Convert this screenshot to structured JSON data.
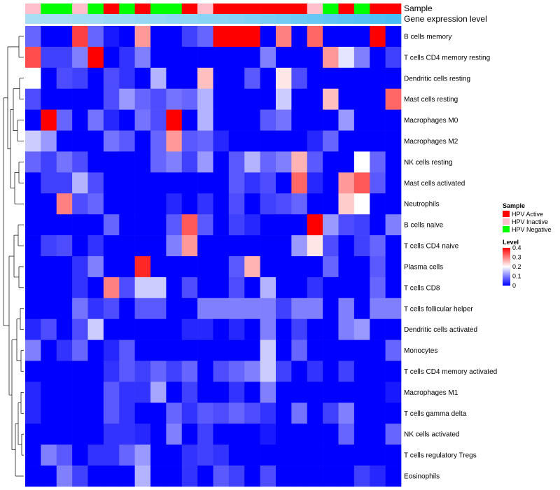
{
  "chart_data": {
    "type": "heatmap",
    "title": "",
    "annotation_labels": {
      "sample": "Sample",
      "gene": "Gene expression level"
    },
    "samples": [
      "HPV Inactive",
      "HPV Negative",
      "HPV Negative",
      "HPV Inactive",
      "HPV Negative",
      "HPV Active",
      "HPV Negative",
      "HPV Active",
      "HPV Negative",
      "HPV Negative",
      "HPV Active",
      "HPV Inactive",
      "HPV Active",
      "HPV Active",
      "HPV Active",
      "HPV Active",
      "HPV Active",
      "HPV Active",
      "HPV Inactive",
      "HPV Negative",
      "HPV Active",
      "HPV Negative",
      "HPV Active",
      "HPV Active"
    ],
    "gene_levels": [
      0.1,
      0.1,
      0.1,
      0.15,
      0.15,
      0.2,
      0.2,
      0.25,
      0.25,
      0.3,
      0.3,
      0.35,
      0.35,
      0.4,
      0.45,
      0.5,
      0.55,
      0.6,
      0.65,
      0.7,
      0.75,
      0.8,
      0.85,
      0.9
    ],
    "rows": [
      "B cells memory",
      "T cells CD4 memory resting",
      "Dendritic cells resting",
      "Mast cells resting",
      "Macrophages M0",
      "Macrophages M2",
      "NK cells resting",
      "Mast cells activated",
      "Neutrophils",
      "B cells naive",
      "T cells CD4 naive",
      "Plasma cells",
      "T cells CD8",
      "T cells follicular helper",
      "Dendritic cells activated",
      "Monocytes",
      "T cells CD4 memory activated",
      "Macrophages M1",
      "T cells gamma delta",
      "NK cells activated",
      "T cells regulatory  Tregs",
      "Eosinophils"
    ],
    "values": [
      [
        0.08,
        0,
        0,
        0.35,
        0.08,
        0.02,
        0,
        0.28,
        0,
        0,
        0.05,
        0.08,
        0.4,
        0.4,
        0.4,
        0,
        0.3,
        0,
        0.32,
        0,
        0,
        0,
        0.4,
        0
      ],
      [
        0.34,
        0.05,
        0.05,
        0.1,
        0.4,
        0,
        0.04,
        0.1,
        0,
        0,
        0,
        0,
        0,
        0,
        0,
        0.1,
        0,
        0,
        0,
        0.28,
        0.18,
        0.1,
        0,
        0.05
      ],
      [
        0.2,
        0,
        0.06,
        0.05,
        0,
        0.06,
        0.04,
        0,
        0.14,
        0,
        0,
        0.25,
        0,
        0,
        0.07,
        0,
        0.22,
        0.06,
        0,
        0,
        0,
        0,
        0,
        0
      ],
      [
        0.06,
        0,
        0,
        0,
        0,
        0.06,
        0.12,
        0.08,
        0.06,
        0.09,
        0.08,
        0.14,
        0,
        0,
        0,
        0,
        0.16,
        0,
        0,
        0.25,
        0,
        0,
        0,
        0.32
      ],
      [
        0,
        0.4,
        0.08,
        0,
        0.09,
        0.03,
        0,
        0.09,
        0.06,
        0.4,
        0,
        0.14,
        0,
        0,
        0,
        0.07,
        0.09,
        0,
        0,
        0,
        0.12,
        0,
        0,
        0
      ],
      [
        0.16,
        0.12,
        0,
        0,
        0,
        0.09,
        0.07,
        0,
        0.08,
        0.28,
        0.07,
        0.08,
        0.03,
        0,
        0,
        0,
        0,
        0,
        0.03,
        0.08,
        0,
        0,
        0,
        0
      ],
      [
        0.08,
        0.05,
        0.09,
        0.06,
        0,
        0,
        0,
        0,
        0.08,
        0.1,
        0.05,
        0.12,
        0,
        0.07,
        0.14,
        0.08,
        0.1,
        0.26,
        0.07,
        0,
        0,
        0.2,
        0.08,
        0
      ],
      [
        0,
        0.05,
        0.05,
        0.14,
        0.06,
        0,
        0,
        0,
        0,
        0,
        0,
        0,
        0,
        0.07,
        0.04,
        0.06,
        0,
        0.32,
        0.03,
        0,
        0.28,
        0.33,
        0.07,
        0
      ],
      [
        0,
        0,
        0.3,
        0.06,
        0.08,
        0,
        0,
        0,
        0,
        0.03,
        0,
        0.04,
        0,
        0.06,
        0,
        0.05,
        0.06,
        0.08,
        0,
        0,
        0.24,
        0.2,
        0,
        0
      ],
      [
        0,
        0,
        0,
        0,
        0,
        0.08,
        0,
        0,
        0,
        0.07,
        0.33,
        0.07,
        0,
        0.05,
        0.03,
        0,
        0,
        0,
        0.4,
        0.12,
        0.06,
        0.05,
        0,
        0.1
      ],
      [
        0,
        0.05,
        0.06,
        0,
        0.04,
        0,
        0,
        0,
        0,
        0.1,
        0.28,
        0,
        0,
        0,
        0,
        0,
        0,
        0.12,
        0.22,
        0.06,
        0,
        0.05,
        0.08,
        0
      ],
      [
        0,
        0,
        0,
        0.04,
        0.1,
        0,
        0,
        0.37,
        0,
        0,
        0,
        0,
        0,
        0.07,
        0.26,
        0,
        0,
        0,
        0,
        0.08,
        0,
        0,
        0.07,
        0
      ],
      [
        0,
        0,
        0,
        0.04,
        0,
        0.3,
        0.06,
        0.16,
        0.16,
        0,
        0.06,
        0,
        0,
        0.06,
        0,
        0.14,
        0,
        0,
        0.04,
        0,
        0,
        0,
        0.08,
        0
      ],
      [
        0,
        0,
        0,
        0.09,
        0.04,
        0.06,
        0,
        0.07,
        0.07,
        0,
        0,
        0.1,
        0.1,
        0.1,
        0.1,
        0.1,
        0.05,
        0.1,
        0.1,
        0,
        0.1,
        0,
        0.1,
        0.1
      ],
      [
        0.03,
        0.06,
        0,
        0.06,
        0.16,
        0,
        0,
        0,
        0,
        0,
        0.03,
        0.03,
        0,
        0.03,
        0,
        0.1,
        0,
        0.05,
        0,
        0,
        0.1,
        0.12,
        0,
        0
      ],
      [
        0.1,
        0,
        0.04,
        0.08,
        0,
        0.03,
        0.07,
        0,
        0,
        0,
        0,
        0,
        0,
        0,
        0,
        0.16,
        0,
        0.08,
        0,
        0,
        0,
        0,
        0,
        0.08
      ],
      [
        0,
        0,
        0,
        0,
        0,
        0.04,
        0.07,
        0.05,
        0.08,
        0.05,
        0.08,
        0,
        0.06,
        0.08,
        0.1,
        0.16,
        0.05,
        0,
        0.04,
        0,
        0.05,
        0,
        0,
        0
      ],
      [
        0.03,
        0,
        0,
        0,
        0,
        0.07,
        0.04,
        0.04,
        0.13,
        0,
        0.05,
        0,
        0,
        0.04,
        0,
        0.1,
        0,
        0,
        0,
        0,
        0,
        0,
        0,
        0.02
      ],
      [
        0.03,
        0,
        0,
        0,
        0,
        0.07,
        0.04,
        0,
        0,
        0.08,
        0.04,
        0.07,
        0.06,
        0.08,
        0.06,
        0.04,
        0,
        0.09,
        0,
        0.05,
        0.1,
        0,
        0,
        0
      ],
      [
        0,
        0,
        0,
        0,
        0,
        0.04,
        0.04,
        0.03,
        0,
        0.1,
        0,
        0.05,
        0,
        0,
        0,
        0.02,
        0,
        0,
        0,
        0,
        0.08,
        0,
        0,
        0.08
      ],
      [
        0,
        0.1,
        0.07,
        0,
        0.04,
        0.04,
        0.08,
        0.12,
        0,
        0,
        0.04,
        0.05,
        0.04,
        0,
        0,
        0,
        0,
        0,
        0,
        0,
        0,
        0,
        0,
        0
      ],
      [
        0,
        0,
        0.1,
        0.05,
        0,
        0,
        0,
        0.14,
        0,
        0,
        0.04,
        0,
        0.07,
        0.05,
        0,
        0.06,
        0,
        0,
        0,
        0,
        0,
        0.05,
        0.03,
        0
      ]
    ],
    "legend": {
      "sample_title": "Sample",
      "sample_entries": [
        {
          "label": "HPV Active",
          "color": "#ff0000"
        },
        {
          "label": "HPV Inactive",
          "color": "#ffc0cb"
        },
        {
          "label": "HPV Negative",
          "color": "#00ff00"
        }
      ],
      "level_title": "Level",
      "level_ticks": [
        "0.4",
        "0.3",
        "0.2",
        "0.1",
        "0"
      ],
      "level_range": [
        0,
        0.4
      ]
    },
    "colors": {
      "low": "#0000ff",
      "mid": "#ffffff",
      "high": "#ff0000"
    }
  }
}
